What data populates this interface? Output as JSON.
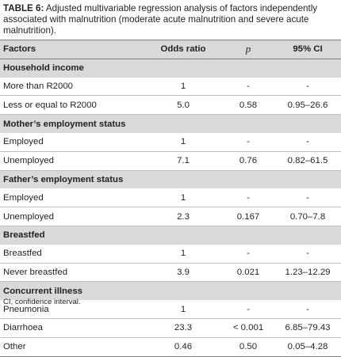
{
  "caption": {
    "label": "TABLE 6:",
    "text": " Adjusted multivariable regression analysis of factors independently associated with malnutrition (moderate acute malnutrition and severe acute malnutrition)."
  },
  "header": {
    "factors": "Factors",
    "odds_ratio": "Odds ratio",
    "p": "p",
    "ci": "95% CI"
  },
  "groups": [
    {
      "title": "Household income",
      "rows": [
        {
          "factor": "More than R2000",
          "or": "1",
          "p": "-",
          "ci": "-"
        },
        {
          "factor": "Less or equal to R2000",
          "or": "5.0",
          "p": "0.58",
          "ci": "0.95–26.6"
        }
      ]
    },
    {
      "title": "Mother’s employment status",
      "rows": [
        {
          "factor": "Employed",
          "or": "1",
          "p": "-",
          "ci": "-"
        },
        {
          "factor": "Unemployed",
          "or": "7.1",
          "p": "0.76",
          "ci": "0.82–61.5"
        }
      ]
    },
    {
      "title": "Father’s employment status",
      "rows": [
        {
          "factor": "Employed",
          "or": "1",
          "p": "-",
          "ci": "-"
        },
        {
          "factor": "Unemployed",
          "or": "2.3",
          "p": "0.167",
          "ci": "0.70–7.8"
        }
      ]
    },
    {
      "title": "Breastfed",
      "rows": [
        {
          "factor": "Breastfed",
          "or": "1",
          "p": "-",
          "ci": "-"
        },
        {
          "factor": "Never breastfed",
          "or": "3.9",
          "p": "0.021",
          "ci": "1.23–12.29"
        }
      ]
    },
    {
      "title": "Concurrent illness",
      "rows": [
        {
          "factor": "Pneumonia",
          "or": "1",
          "p": "-",
          "ci": "-"
        },
        {
          "factor": "Diarrhoea",
          "or": "23.3",
          "p": "< 0.001",
          "ci": "6.85–79.43"
        },
        {
          "factor": "Other",
          "or": "0.46",
          "p": "0.50",
          "ci": "0.05–4.28"
        }
      ]
    }
  ],
  "footnote": "CI, confidence interval."
}
